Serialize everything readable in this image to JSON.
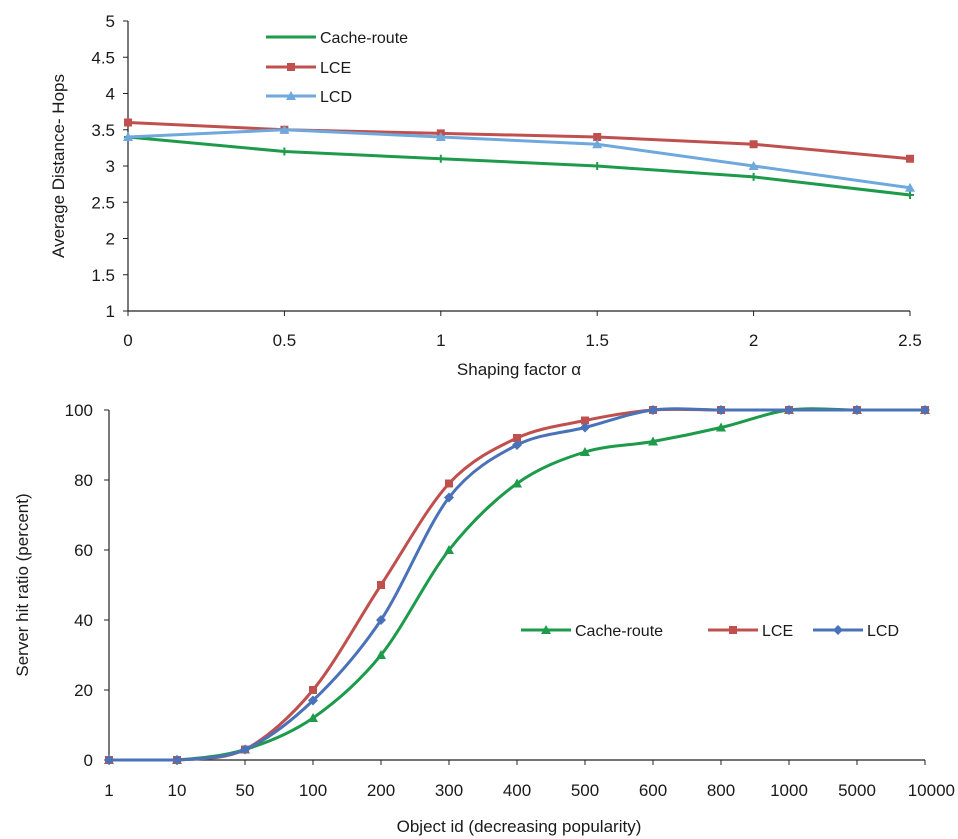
{
  "chart_data": [
    {
      "type": "line",
      "title": "",
      "xlabel": "Shaping factor α",
      "ylabel": "Average Distance- Hops",
      "x": [
        0,
        0.5,
        1,
        1.5,
        2,
        2.5
      ],
      "x_tick_labels": [
        "0",
        "0.5",
        "1",
        "1.5",
        "2",
        "2.5"
      ],
      "ylim": [
        1,
        5
      ],
      "y_ticks": [
        1,
        1.5,
        2,
        2.5,
        3,
        3.5,
        4,
        4.5,
        5
      ],
      "y_tick_labels": [
        "1",
        "1.5",
        "2",
        "2.5",
        "3",
        "3.5",
        "4",
        "4.5",
        "5"
      ],
      "grid": false,
      "legend": "top-left",
      "series": [
        {
          "name": "Cache-route",
          "color": "#1e9a4b",
          "marker": "plus",
          "values": [
            3.4,
            3.2,
            3.1,
            3.0,
            2.85,
            2.6
          ]
        },
        {
          "name": "LCE",
          "color": "#c0504d",
          "marker": "square",
          "values": [
            3.6,
            3.5,
            3.45,
            3.4,
            3.3,
            3.1
          ]
        },
        {
          "name": "LCD",
          "color": "#6fa8dc",
          "marker": "triangle",
          "values": [
            3.4,
            3.5,
            3.4,
            3.3,
            3.0,
            2.7
          ]
        }
      ]
    },
    {
      "type": "line",
      "title": "",
      "xlabel": "Object id (decreasing popularity)",
      "ylabel": "Server  hit ratio (percent)",
      "categories": [
        "1",
        "10",
        "50",
        "100",
        "200",
        "300",
        "400",
        "500",
        "600",
        "800",
        "1000",
        "5000",
        "10000"
      ],
      "ylim": [
        0,
        100
      ],
      "y_ticks": [
        0,
        20,
        40,
        60,
        80,
        100
      ],
      "y_tick_labels": [
        "0",
        "20",
        "40",
        "60",
        "80",
        "100"
      ],
      "grid": false,
      "legend": "center-right",
      "series": [
        {
          "name": "Cache-route",
          "color": "#1e9a4b",
          "marker": "triangle",
          "values": [
            0,
            0,
            3,
            12,
            30,
            60,
            79,
            88,
            91,
            95,
            100,
            100,
            100
          ]
        },
        {
          "name": "LCE",
          "color": "#c0504d",
          "marker": "square",
          "values": [
            0,
            0,
            3,
            20,
            50,
            79,
            92,
            97,
            100,
            100,
            100,
            100,
            100
          ]
        },
        {
          "name": "LCD",
          "color": "#4a72b8",
          "marker": "diamond",
          "values": [
            0,
            0,
            3,
            17,
            40,
            75,
            90,
            95,
            100,
            100,
            100,
            100,
            100
          ]
        }
      ]
    }
  ]
}
